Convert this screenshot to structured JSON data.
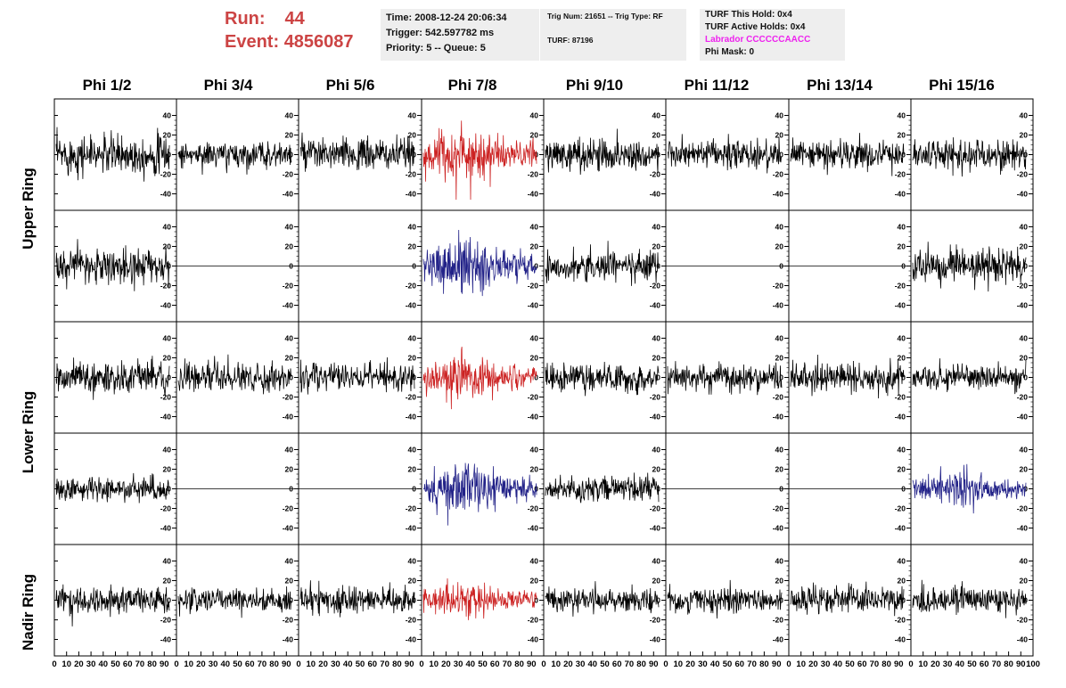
{
  "run": {
    "run_label": "Run:",
    "run_value": "44",
    "event_label": "Event:",
    "event_value": "4856087"
  },
  "info_primary": {
    "time": "Time: 2008-12-24 20:06:34",
    "trigger": "Trigger: 542.597782 ms",
    "priority": "Priority: 5 -- Queue: 5"
  },
  "info_trigger": {
    "trig": "Trig Num: 21651 -- Trig Type: RF",
    "turf": "TURF: 87196"
  },
  "info_turf": {
    "this_hold": "TURF This Hold: 0x4",
    "active_holds": "TURF Active Holds: 0x4",
    "labrador": "Labrador CCCCCCAACC",
    "phi_mask": "Phi Mask: 0"
  },
  "phi_headers": [
    "Phi 1/2",
    "Phi 3/4",
    "Phi 5/6",
    "Phi 7/8",
    "Phi 9/10",
    "Phi 11/12",
    "Phi 13/14",
    "Phi 15/16"
  ],
  "ring_labels": [
    "Upper Ring",
    "Lower Ring",
    "Nadir Ring"
  ],
  "y_ticks": [
    "40",
    "20",
    "0",
    "-20",
    "-40"
  ],
  "x_ticks": [
    "0",
    "10",
    "20",
    "30",
    "40",
    "50",
    "60",
    "70",
    "80",
    "90",
    "100"
  ],
  "colors": {
    "normal": "#000000",
    "highlight_red": "#cc2222",
    "highlight_blue": "#222288",
    "run_text": "#cc4444",
    "labrador": "#ee22ee",
    "panel_bg": "#eeeeee"
  },
  "panels": {
    "rows": [
      {
        "ring": "Upper Ring",
        "types": [
          "wave",
          "wave",
          "wave",
          "red",
          "wave",
          "wave",
          "wave",
          "wave"
        ],
        "amps": [
          18,
          12,
          15,
          22,
          15,
          13,
          14,
          14
        ]
      },
      {
        "ring": "Upper Ring",
        "types": [
          "wave",
          "flat",
          "flat",
          "blue",
          "wave",
          "flat",
          "flat",
          "wave"
        ],
        "amps": [
          16,
          0,
          0,
          22,
          14,
          0,
          0,
          15
        ]
      },
      {
        "ring": "Lower Ring",
        "types": [
          "wave",
          "wave",
          "wave",
          "red",
          "wave",
          "wave",
          "wave",
          "wave"
        ],
        "amps": [
          15,
          12,
          13,
          18,
          13,
          13,
          14,
          11
        ]
      },
      {
        "ring": "Lower Ring",
        "types": [
          "wave",
          "flat",
          "flat",
          "blue",
          "wave",
          "flat",
          "flat",
          "blue"
        ],
        "amps": [
          11,
          0,
          0,
          20,
          11,
          0,
          0,
          14
        ]
      },
      {
        "ring": "Nadir Ring",
        "types": [
          "wave",
          "wave",
          "wave",
          "red",
          "wave",
          "wave",
          "wave",
          "wave"
        ],
        "amps": [
          13,
          11,
          12,
          14,
          11,
          12,
          12,
          13
        ]
      }
    ]
  }
}
